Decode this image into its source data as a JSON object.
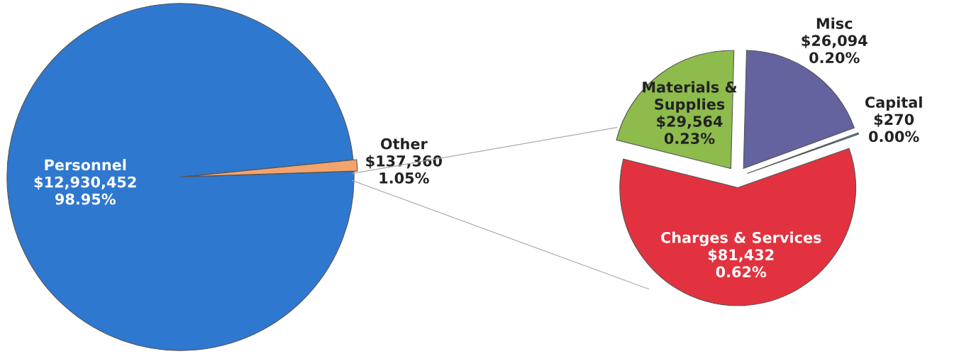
{
  "chart_data": [
    {
      "type": "pie",
      "categories": [
        "Personnel",
        "Other"
      ],
      "values": [
        12930452,
        137360
      ],
      "colors": [
        "#2f78d0",
        "#f2a46e"
      ],
      "value_labels": [
        "$12,930,452\n98.95%",
        "$137,360\n1.05%"
      ]
    },
    {
      "type": "pie",
      "categories": [
        "Materials &\nSupplies",
        "Misc",
        "Capital",
        "Charges & Services"
      ],
      "values": [
        29564,
        26094,
        270,
        81432
      ],
      "colors": [
        "#8dbb4c",
        "#64639f",
        "#5b8fd0",
        "#e2323f"
      ],
      "value_labels": [
        "$29,564\n0.23%",
        "$26,094\n0.20%",
        "$270\n0.00%",
        "$81,432\n0.62%"
      ]
    }
  ]
}
